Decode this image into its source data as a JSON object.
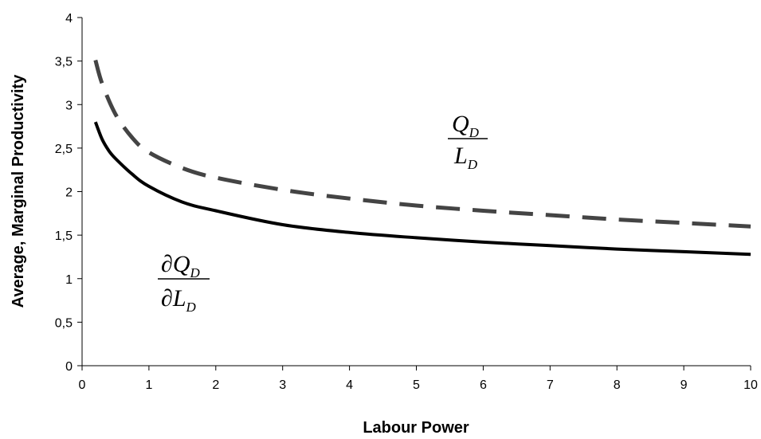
{
  "chart_data": {
    "type": "line",
    "title": "",
    "xlabel": "Labour Power",
    "ylabel": "Average, Marginal Productivity",
    "xlim": [
      0,
      10
    ],
    "ylim": [
      0,
      4
    ],
    "x_ticks": [
      "0",
      "1",
      "2",
      "3",
      "4",
      "5",
      "6",
      "7",
      "8",
      "9",
      "10"
    ],
    "y_ticks": [
      "0",
      "0,5",
      "1",
      "1,5",
      "2",
      "2,5",
      "3",
      "3,5",
      "4"
    ],
    "grid": false,
    "legend": "none",
    "series": [
      {
        "name": "Q_D / L_D",
        "style": "dashed",
        "color": "#444444",
        "x": [
          0.2,
          0.3,
          0.5,
          0.75,
          1,
          1.5,
          2,
          3,
          4,
          5,
          6,
          7,
          8,
          9,
          10
        ],
        "y": [
          3.51,
          3.24,
          2.89,
          2.62,
          2.45,
          2.27,
          2.16,
          2.02,
          1.92,
          1.84,
          1.78,
          1.73,
          1.68,
          1.64,
          1.6
        ]
      },
      {
        "name": "∂Q_D / ∂L_D",
        "style": "solid",
        "color": "#000000",
        "x": [
          0.2,
          0.3,
          0.4,
          0.5,
          0.75,
          1,
          1.5,
          2,
          3,
          4,
          5,
          6,
          7,
          8,
          9,
          10
        ],
        "y": [
          2.8,
          2.6,
          2.47,
          2.38,
          2.2,
          2.06,
          1.88,
          1.78,
          1.62,
          1.53,
          1.47,
          1.42,
          1.38,
          1.34,
          1.31,
          1.28
        ]
      }
    ],
    "annotations": {
      "average": {
        "numerator": "Q",
        "denominator": "L",
        "subscript": "D"
      },
      "marginal": {
        "numerator": "∂Q",
        "denominator": "∂L",
        "subscript": "D"
      }
    }
  }
}
